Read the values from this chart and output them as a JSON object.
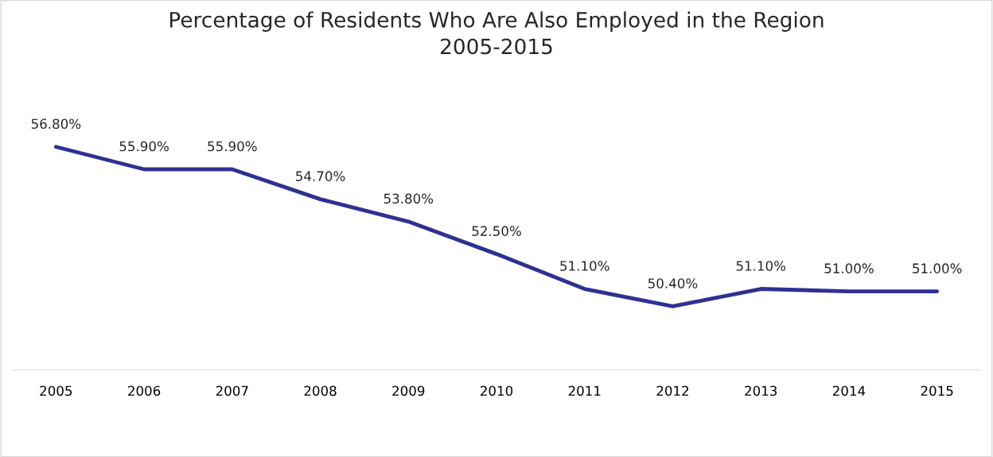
{
  "chart_data": {
    "type": "line",
    "title": "Percentage of Residents Who Are Also Employed in the Region\n2005-2015",
    "categories": [
      "2005",
      "2006",
      "2007",
      "2008",
      "2009",
      "2010",
      "2011",
      "2012",
      "2013",
      "2014",
      "2015"
    ],
    "series": [
      {
        "color": "#2e3192",
        "values": [
          56.8,
          55.9,
          55.9,
          54.7,
          53.8,
          52.5,
          51.1,
          50.4,
          51.1,
          51.0,
          51.0
        ],
        "value_labels": [
          "56.80%",
          "55.90%",
          "55.90%",
          "54.70%",
          "53.80%",
          "52.50%",
          "51.10%",
          "50.40%",
          "51.10%",
          "51.00%",
          "51.00%"
        ]
      }
    ],
    "tick_labels": "x",
    "grid": false,
    "legend": false,
    "marker": "none",
    "line_style": "solid"
  }
}
